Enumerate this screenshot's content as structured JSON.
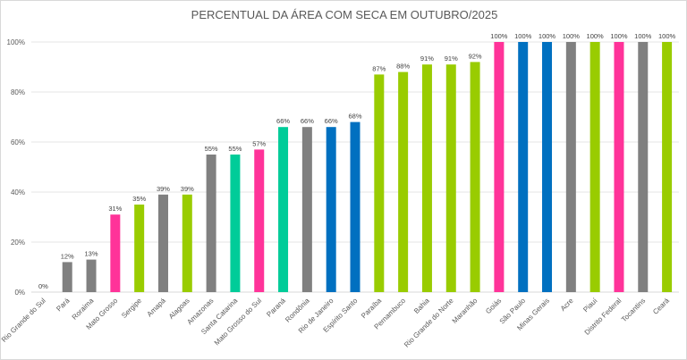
{
  "chart_data": {
    "type": "bar",
    "title": "PERCENTUAL DA ÁREA COM SECA EM OUTUBRO/2025",
    "xlabel": "",
    "ylabel": "",
    "ylim": [
      0,
      100
    ],
    "yticks": [
      "0%",
      "20%",
      "40%",
      "60%",
      "80%",
      "100%"
    ],
    "ytick_values": [
      0,
      20,
      40,
      60,
      80,
      100
    ],
    "grid": true,
    "legend": "none",
    "categories": [
      "Rio Grande do Sul",
      "Pará",
      "Roraima",
      "Mato Grosso",
      "Sergipe",
      "Amapá",
      "Alagoas",
      "Amazonas",
      "Santa Catarina",
      "Mato Grosso do Sul",
      "Paraná",
      "Rondônia",
      "Rio de Janeiro",
      "Espírito Santo",
      "Paraíba",
      "Pernambuco",
      "Bahia",
      "Rio Grande do Norte",
      "Maranhão",
      "Goiás",
      "São Paulo",
      "Minas Gerais",
      "Acre",
      "Piauí",
      "Distrito Federal",
      "Tocantins",
      "Ceará"
    ],
    "values": [
      0,
      12,
      13,
      31,
      35,
      39,
      39,
      55,
      55,
      57,
      66,
      66,
      66,
      68,
      87,
      88,
      91,
      91,
      92,
      100,
      100,
      100,
      100,
      100,
      100,
      100,
      100
    ],
    "data_labels": [
      "0%",
      "12%",
      "13%",
      "31%",
      "35%",
      "39%",
      "39%",
      "55%",
      "55%",
      "57%",
      "66%",
      "66%",
      "66%",
      "68%",
      "87%",
      "88%",
      "91%",
      "91%",
      "92%",
      "100%",
      "100%",
      "100%",
      "100%",
      "100%",
      "100%",
      "100%",
      "100%"
    ],
    "colors": [
      "#808080",
      "#808080",
      "#808080",
      "#FF3399",
      "#99CC00",
      "#808080",
      "#99CC00",
      "#808080",
      "#00CC99",
      "#FF3399",
      "#00CC99",
      "#808080",
      "#0070C0",
      "#0070C0",
      "#99CC00",
      "#99CC00",
      "#99CC00",
      "#99CC00",
      "#99CC00",
      "#FF3399",
      "#0070C0",
      "#0070C0",
      "#808080",
      "#99CC00",
      "#FF3399",
      "#808080",
      "#99CC00"
    ]
  }
}
